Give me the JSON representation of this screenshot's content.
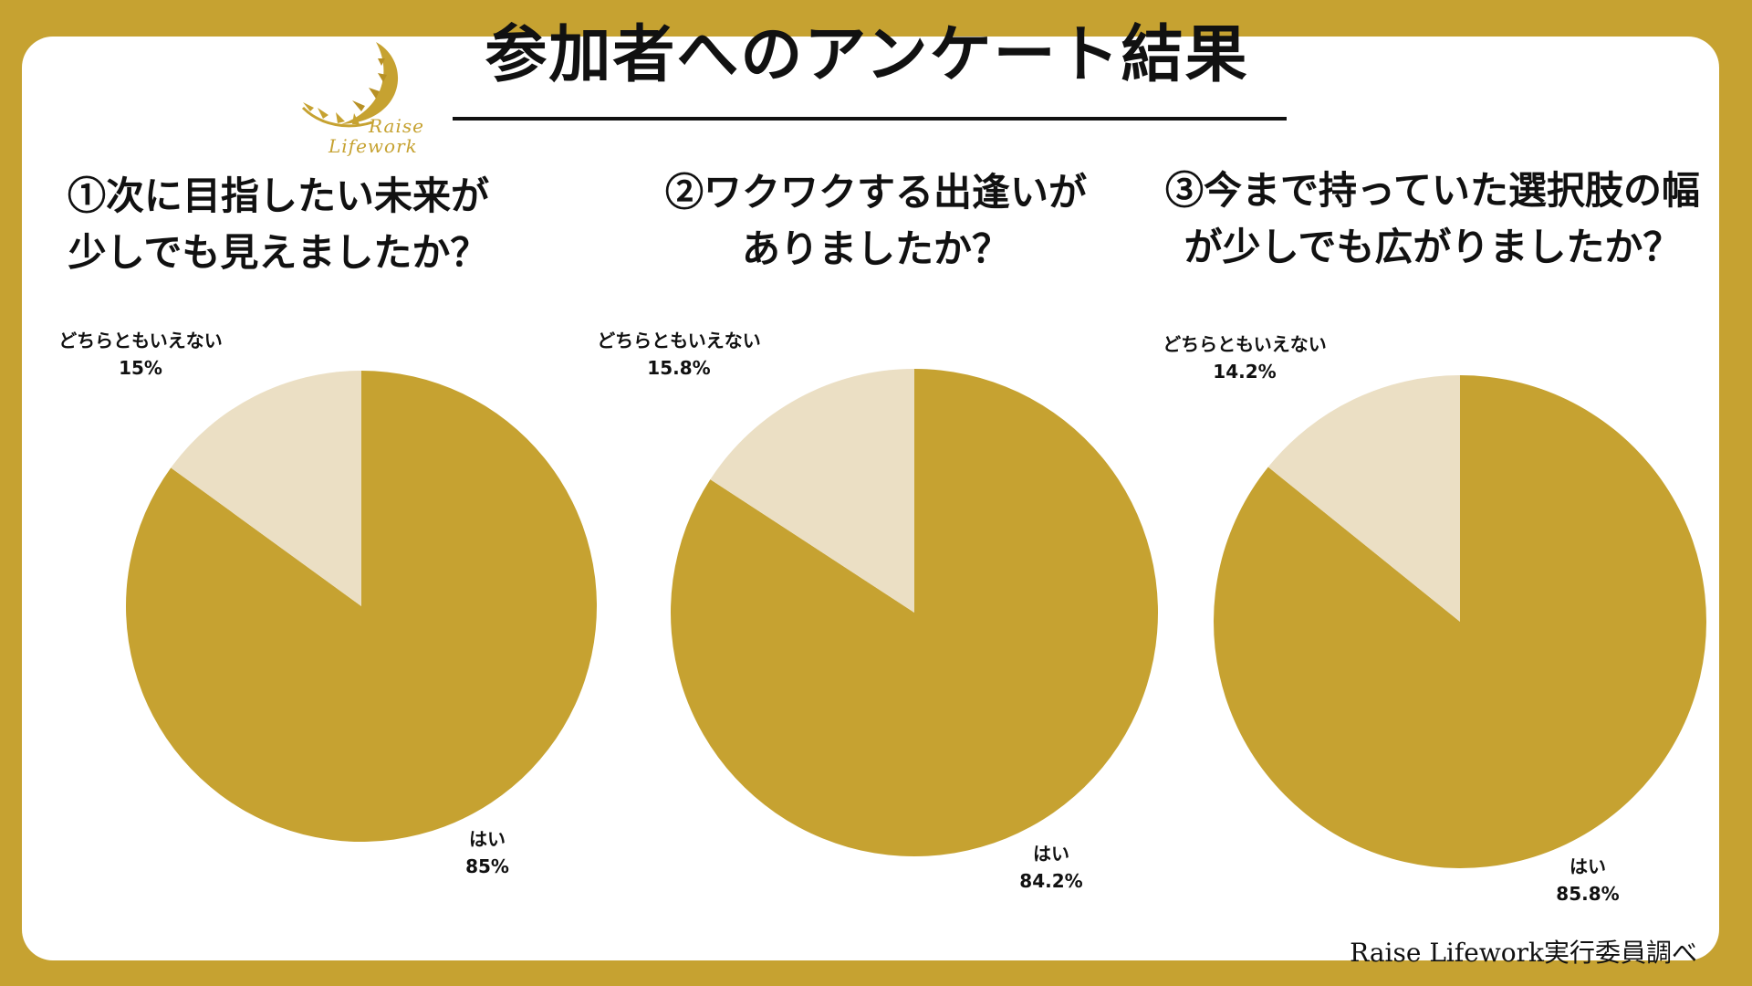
{
  "title": "参加者へのアンケート結果",
  "logo": {
    "line1": "Raise",
    "line2": "Lifework"
  },
  "source": "Raise Lifework実行委員調べ",
  "colors": {
    "background": "#c6a231",
    "yes": "#c6a231",
    "neutral": "#ebdfc4",
    "text": "#111111"
  },
  "chart_data": [
    {
      "type": "pie",
      "title_lines": [
        "①次に目指したい未来が",
        "少しでも見えましたか？"
      ],
      "labels": [
        "はい",
        "どちらともいえない"
      ],
      "values": [
        85,
        15
      ],
      "value_labels": [
        "85%",
        "15%"
      ]
    },
    {
      "type": "pie",
      "title_lines": [
        "②ワクワクする出逢いが",
        "ありましたか？"
      ],
      "labels": [
        "はい",
        "どちらともいえない"
      ],
      "values": [
        84.2,
        15.8
      ],
      "value_labels": [
        "84.2%",
        "15.8%"
      ]
    },
    {
      "type": "pie",
      "title_lines": [
        "③今まで持っていた選択肢の幅",
        "が少しでも広がりましたか？"
      ],
      "labels": [
        "はい",
        "どちらともいえない"
      ],
      "values": [
        85.8,
        14.2
      ],
      "value_labels": [
        "85.8%",
        "14.2%"
      ]
    }
  ]
}
